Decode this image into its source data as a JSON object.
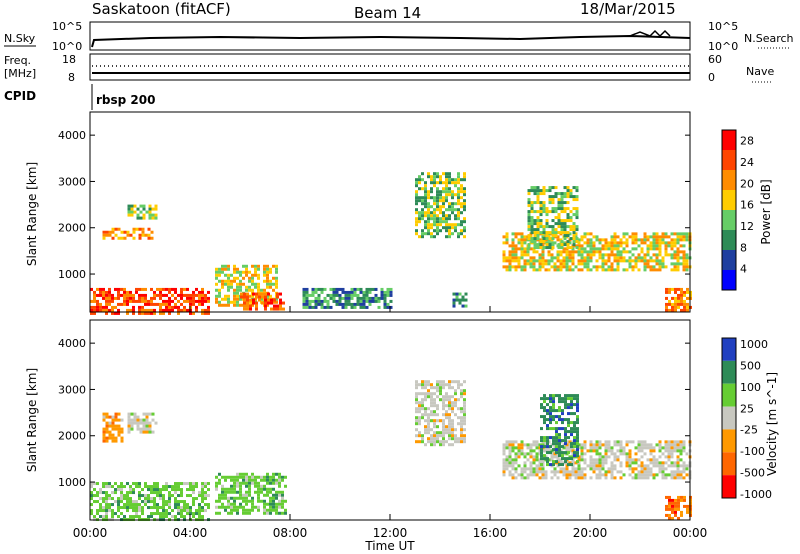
{
  "header": {
    "title": "Saskatoon (fitACF)",
    "beam": "Beam 14",
    "date": "18/Mar/2015"
  },
  "panel_nsky": {
    "left_label": "N.Sky",
    "right_label": "N.Search",
    "left_ticks": [
      "10^5",
      "10^0"
    ],
    "right_ticks": [
      "10^5",
      "10^0"
    ]
  },
  "panel_freq": {
    "left_label_1": "Freq.",
    "left_label_2": "[MHz]",
    "right_label": "Nave",
    "left_ticks": [
      "18",
      "8"
    ],
    "right_ticks": [
      "60",
      "0"
    ]
  },
  "panel_cpid": {
    "label": "CPID",
    "program": "rbsp 200"
  },
  "x_axis": {
    "label": "Time UT",
    "ticks": [
      "00:00",
      "04:00",
      "08:00",
      "12:00",
      "16:00",
      "20:00",
      "00:00"
    ]
  },
  "chart_data": [
    {
      "type": "heatmap",
      "quantity": "Power",
      "ylabel": "Slant Range [km]",
      "xlabel": "Time UT",
      "xlim": [
        0,
        24
      ],
      "ylim": [
        180,
        4500
      ],
      "y_ticks": [
        "1000",
        "2000",
        "3000",
        "4000"
      ],
      "colorbar_label": "Power [dB]",
      "colorbar_ticks": [
        "4",
        "8",
        "12",
        "16",
        "20",
        "24",
        "28"
      ],
      "colorbar_range": [
        0,
        30
      ],
      "colors": [
        "#0000ff",
        "#1f3f9f",
        "#2e8b57",
        "#66cd66",
        "#ffcc00",
        "#ff8c00",
        "#ff4500",
        "#ff0000"
      ],
      "echo_regions": [
        {
          "t0": 0.0,
          "t1": 4.8,
          "r0": 180,
          "r1": 700,
          "value": 27
        },
        {
          "t0": 0.5,
          "t1": 2.5,
          "r0": 1750,
          "r1": 2000,
          "value": 22
        },
        {
          "t0": 1.5,
          "t1": 2.6,
          "r0": 2200,
          "r1": 2500,
          "value": 14
        },
        {
          "t0": 5.0,
          "t1": 7.5,
          "r0": 300,
          "r1": 1200,
          "value": 18
        },
        {
          "t0": 6.0,
          "t1": 7.8,
          "r0": 250,
          "r1": 600,
          "value": 25
        },
        {
          "t0": 8.5,
          "t1": 12.0,
          "r0": 250,
          "r1": 700,
          "value": 10
        },
        {
          "t0": 13.0,
          "t1": 15.0,
          "r0": 1800,
          "r1": 3200,
          "value": 12
        },
        {
          "t0": 14.5,
          "t1": 15.0,
          "r0": 300,
          "r1": 600,
          "value": 10
        },
        {
          "t0": 16.5,
          "t1": 24.0,
          "r0": 1100,
          "r1": 1900,
          "value": 16
        },
        {
          "t0": 17.5,
          "t1": 19.5,
          "r0": 1600,
          "r1": 2900,
          "value": 12
        },
        {
          "t0": 23.0,
          "t1": 24.0,
          "r0": 200,
          "r1": 700,
          "value": 22
        }
      ]
    },
    {
      "type": "heatmap",
      "quantity": "Velocity",
      "ylabel": "Slant Range [km]",
      "xlabel": "Time UT",
      "xlim": [
        0,
        24
      ],
      "ylim": [
        180,
        4500
      ],
      "y_ticks": [
        "1000",
        "2000",
        "3000",
        "4000"
      ],
      "colorbar_label": "Velocity [m s^-1]",
      "colorbar_ticks": [
        "1000",
        "500",
        "100",
        "25",
        "-25",
        "-100",
        "-500",
        "-1000"
      ],
      "colors": [
        "#2040c0",
        "#2e8b57",
        "#66cd33",
        "#c8c8c0",
        "#ff9900",
        "#ff6600",
        "#ff0000"
      ],
      "echo_regions": [
        {
          "t0": 0.0,
          "t1": 4.8,
          "r0": 180,
          "r1": 1000,
          "value": 50
        },
        {
          "t0": 1.5,
          "t1": 2.6,
          "r0": 2100,
          "r1": 2500,
          "value": 0
        },
        {
          "t0": 0.5,
          "t1": 1.3,
          "r0": 1900,
          "r1": 2500,
          "value": -100
        },
        {
          "t0": 5.0,
          "t1": 7.8,
          "r0": 300,
          "r1": 1200,
          "value": 50
        },
        {
          "t0": 13.0,
          "t1": 15.0,
          "r0": 1800,
          "r1": 3200,
          "value": 0
        },
        {
          "t0": 16.5,
          "t1": 24.0,
          "r0": 1100,
          "r1": 1900,
          "value": 0
        },
        {
          "t0": 18.0,
          "t1": 19.5,
          "r0": 1400,
          "r1": 2900,
          "value": 100
        },
        {
          "t0": 23.0,
          "t1": 24.0,
          "r0": 200,
          "r1": 700,
          "value": -200
        }
      ]
    }
  ]
}
